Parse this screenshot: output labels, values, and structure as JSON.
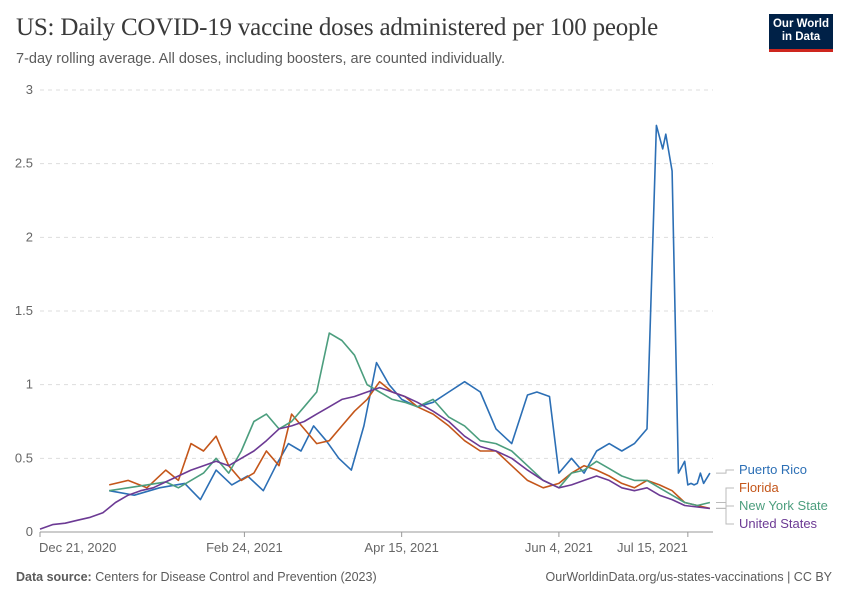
{
  "header": {
    "title": "US: Daily COVID-19 vaccine doses administered per 100 people",
    "subtitle": "7-day rolling average. All doses, including boosters, are counted individually.",
    "logo_line1": "Our World",
    "logo_line2": "in Data"
  },
  "footer": {
    "source_label": "Data source:",
    "source_text": "Centers for Disease Control and Prevention (2023)",
    "right_text": "OurWorldinData.org/us-states-vaccinations | CC BY"
  },
  "colors": {
    "Puerto Rico": "#2c6fb5",
    "Florida": "#c4561a",
    "New York State": "#4c9e7e",
    "United States": "#6c3a94"
  },
  "chart_data": {
    "type": "line",
    "title": "US: Daily COVID-19 vaccine doses administered per 100 people",
    "subtitle": "7-day rolling average. All doses, including boosters, are counted individually.",
    "x_range": [
      "2020-12-21",
      "2021-07-23"
    ],
    "ylim": [
      0,
      3
    ],
    "yticks": [
      0,
      0.5,
      1,
      1.5,
      2,
      2.5,
      3
    ],
    "ytick_labels": [
      "0",
      "0.5",
      "1",
      "1.5",
      "2",
      "2.5",
      "3"
    ],
    "xticks": [
      "2020-12-21",
      "2021-02-24",
      "2021-04-15",
      "2021-06-04",
      "2021-07-15"
    ],
    "xtick_labels": [
      "Dec 21, 2020",
      "Feb 24, 2021",
      "Apr 15, 2021",
      "Jun 4, 2021",
      "Jul 15, 2021"
    ],
    "grid": "horizontal dashed",
    "legend": "right",
    "series": [
      {
        "name": "Puerto Rico",
        "dates": [
          "2021-01-12",
          "2021-01-20",
          "2021-01-28",
          "2021-02-05",
          "2021-02-10",
          "2021-02-15",
          "2021-02-20",
          "2021-02-25",
          "2021-03-02",
          "2021-03-06",
          "2021-03-10",
          "2021-03-14",
          "2021-03-18",
          "2021-03-22",
          "2021-03-26",
          "2021-03-30",
          "2021-04-03",
          "2021-04-07",
          "2021-04-11",
          "2021-04-15",
          "2021-04-20",
          "2021-04-25",
          "2021-04-30",
          "2021-05-05",
          "2021-05-10",
          "2021-05-15",
          "2021-05-20",
          "2021-05-25",
          "2021-05-28",
          "2021-06-01",
          "2021-06-04",
          "2021-06-08",
          "2021-06-12",
          "2021-06-16",
          "2021-06-20",
          "2021-06-24",
          "2021-06-28",
          "2021-07-02",
          "2021-07-05",
          "2021-07-07",
          "2021-07-08",
          "2021-07-10",
          "2021-07-12",
          "2021-07-14",
          "2021-07-15",
          "2021-07-16",
          "2021-07-17",
          "2021-07-18",
          "2021-07-19",
          "2021-07-20",
          "2021-07-22"
        ],
        "values": [
          0.28,
          0.25,
          0.3,
          0.33,
          0.22,
          0.42,
          0.32,
          0.38,
          0.28,
          0.45,
          0.6,
          0.55,
          0.72,
          0.62,
          0.5,
          0.42,
          0.72,
          1.15,
          1.0,
          0.9,
          0.85,
          0.88,
          0.95,
          1.02,
          0.95,
          0.7,
          0.6,
          0.93,
          0.95,
          0.92,
          0.4,
          0.5,
          0.4,
          0.55,
          0.6,
          0.55,
          0.6,
          0.7,
          2.76,
          2.6,
          2.7,
          2.45,
          0.4,
          0.48,
          0.32,
          0.33,
          0.32,
          0.33,
          0.4,
          0.33,
          0.4
        ]
      },
      {
        "name": "Florida",
        "dates": [
          "2021-01-12",
          "2021-01-18",
          "2021-01-24",
          "2021-01-30",
          "2021-02-03",
          "2021-02-07",
          "2021-02-11",
          "2021-02-15",
          "2021-02-19",
          "2021-02-23",
          "2021-02-27",
          "2021-03-03",
          "2021-03-07",
          "2021-03-11",
          "2021-03-15",
          "2021-03-19",
          "2021-03-23",
          "2021-03-27",
          "2021-03-31",
          "2021-04-04",
          "2021-04-08",
          "2021-04-12",
          "2021-04-16",
          "2021-04-20",
          "2021-04-25",
          "2021-04-30",
          "2021-05-05",
          "2021-05-10",
          "2021-05-15",
          "2021-05-20",
          "2021-05-25",
          "2021-05-30",
          "2021-06-04",
          "2021-06-08",
          "2021-06-12",
          "2021-06-16",
          "2021-06-20",
          "2021-06-24",
          "2021-06-28",
          "2021-07-02",
          "2021-07-06",
          "2021-07-10",
          "2021-07-14",
          "2021-07-18",
          "2021-07-22"
        ],
        "values": [
          0.32,
          0.35,
          0.3,
          0.42,
          0.35,
          0.6,
          0.55,
          0.65,
          0.45,
          0.35,
          0.4,
          0.55,
          0.45,
          0.8,
          0.7,
          0.6,
          0.62,
          0.72,
          0.82,
          0.9,
          1.02,
          0.95,
          0.92,
          0.85,
          0.8,
          0.72,
          0.62,
          0.55,
          0.55,
          0.45,
          0.35,
          0.3,
          0.33,
          0.4,
          0.45,
          0.42,
          0.38,
          0.33,
          0.3,
          0.35,
          0.32,
          0.28,
          0.2,
          0.18,
          0.16
        ]
      },
      {
        "name": "New York State",
        "dates": [
          "2021-01-12",
          "2021-01-18",
          "2021-01-24",
          "2021-01-30",
          "2021-02-03",
          "2021-02-07",
          "2021-02-11",
          "2021-02-15",
          "2021-02-19",
          "2021-02-23",
          "2021-02-27",
          "2021-03-03",
          "2021-03-07",
          "2021-03-11",
          "2021-03-15",
          "2021-03-19",
          "2021-03-23",
          "2021-03-27",
          "2021-03-31",
          "2021-04-04",
          "2021-04-08",
          "2021-04-12",
          "2021-04-16",
          "2021-04-20",
          "2021-04-25",
          "2021-04-30",
          "2021-05-05",
          "2021-05-10",
          "2021-05-15",
          "2021-05-20",
          "2021-05-25",
          "2021-05-30",
          "2021-06-04",
          "2021-06-08",
          "2021-06-12",
          "2021-06-16",
          "2021-06-20",
          "2021-06-24",
          "2021-06-28",
          "2021-07-02",
          "2021-07-06",
          "2021-07-10",
          "2021-07-14",
          "2021-07-18",
          "2021-07-22"
        ],
        "values": [
          0.28,
          0.3,
          0.32,
          0.34,
          0.3,
          0.35,
          0.4,
          0.5,
          0.4,
          0.55,
          0.75,
          0.8,
          0.7,
          0.75,
          0.85,
          0.95,
          1.35,
          1.3,
          1.2,
          1.0,
          0.95,
          0.9,
          0.88,
          0.85,
          0.9,
          0.78,
          0.72,
          0.62,
          0.6,
          0.55,
          0.45,
          0.35,
          0.3,
          0.4,
          0.42,
          0.48,
          0.43,
          0.38,
          0.35,
          0.35,
          0.3,
          0.25,
          0.2,
          0.18,
          0.2
        ]
      },
      {
        "name": "United States",
        "dates": [
          "2020-12-21",
          "2020-12-25",
          "2020-12-29",
          "2021-01-02",
          "2021-01-06",
          "2021-01-10",
          "2021-01-14",
          "2021-01-18",
          "2021-01-22",
          "2021-01-26",
          "2021-01-30",
          "2021-02-03",
          "2021-02-07",
          "2021-02-11",
          "2021-02-15",
          "2021-02-19",
          "2021-02-23",
          "2021-02-27",
          "2021-03-03",
          "2021-03-07",
          "2021-03-11",
          "2021-03-15",
          "2021-03-19",
          "2021-03-23",
          "2021-03-27",
          "2021-03-31",
          "2021-04-04",
          "2021-04-08",
          "2021-04-12",
          "2021-04-16",
          "2021-04-20",
          "2021-04-25",
          "2021-04-30",
          "2021-05-05",
          "2021-05-10",
          "2021-05-15",
          "2021-05-20",
          "2021-05-25",
          "2021-05-30",
          "2021-06-04",
          "2021-06-08",
          "2021-06-12",
          "2021-06-16",
          "2021-06-20",
          "2021-06-24",
          "2021-06-28",
          "2021-07-02",
          "2021-07-06",
          "2021-07-10",
          "2021-07-14",
          "2021-07-18",
          "2021-07-22"
        ],
        "values": [
          0.02,
          0.05,
          0.06,
          0.08,
          0.1,
          0.13,
          0.2,
          0.25,
          0.28,
          0.3,
          0.34,
          0.38,
          0.42,
          0.45,
          0.48,
          0.45,
          0.5,
          0.55,
          0.62,
          0.7,
          0.72,
          0.75,
          0.8,
          0.85,
          0.9,
          0.92,
          0.95,
          0.98,
          0.95,
          0.92,
          0.88,
          0.82,
          0.75,
          0.65,
          0.58,
          0.55,
          0.5,
          0.42,
          0.35,
          0.3,
          0.32,
          0.35,
          0.38,
          0.35,
          0.3,
          0.28,
          0.3,
          0.25,
          0.22,
          0.18,
          0.17,
          0.16
        ]
      }
    ]
  }
}
